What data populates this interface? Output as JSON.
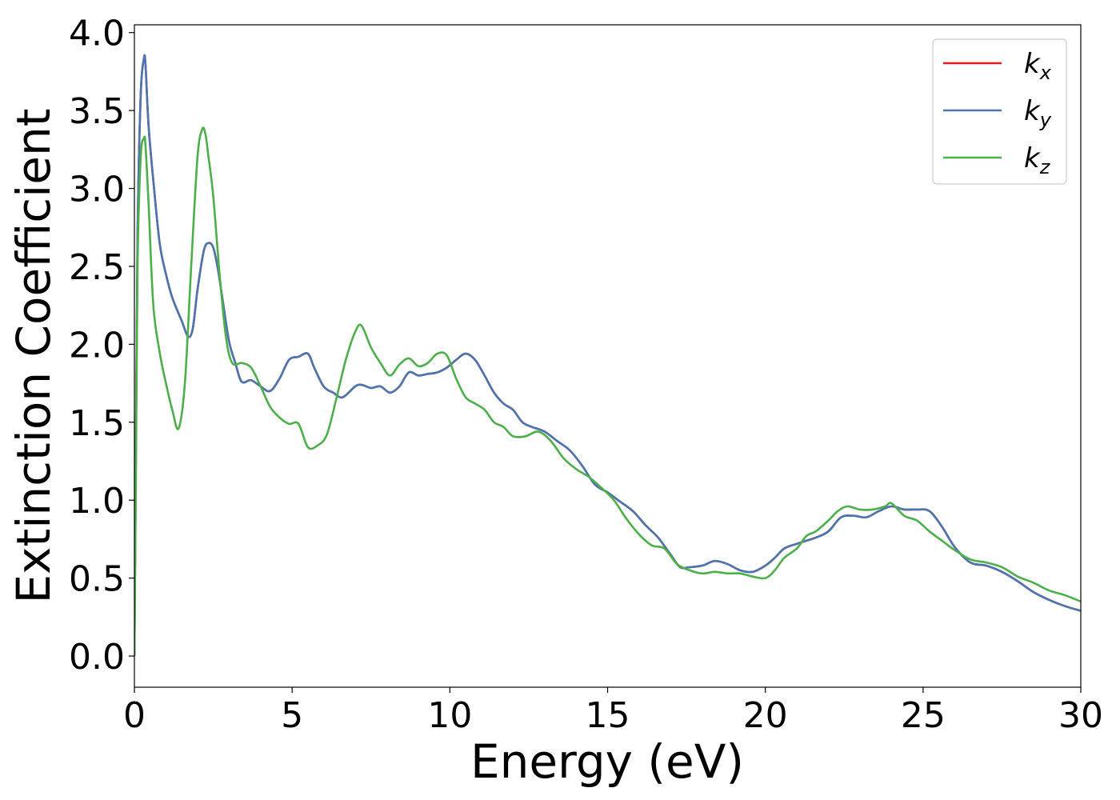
{
  "chart_data": {
    "type": "line",
    "title": "",
    "xlabel": "Energy (eV)",
    "ylabel": "Extinction Coefficient",
    "xlim": [
      0,
      30
    ],
    "ylim": [
      -0.2,
      4.05
    ],
    "xticks": [
      0,
      5,
      10,
      15,
      20,
      25,
      30
    ],
    "yticks": [
      0.0,
      0.5,
      1.0,
      1.5,
      2.0,
      2.5,
      3.0,
      3.5,
      4.0
    ],
    "xtick_labels": [
      "0",
      "5",
      "10",
      "15",
      "20",
      "25",
      "30"
    ],
    "ytick_labels": [
      "0.0",
      "0.5",
      "1.0",
      "1.5",
      "2.0",
      "2.5",
      "3.0",
      "3.5",
      "4.0"
    ],
    "grid": false,
    "legend_position": "top-right",
    "series": [
      {
        "name": "k_x",
        "label_base": "k",
        "label_sub": "x",
        "color": "#e41a1c",
        "x": [
          0,
          0.05,
          0.1,
          0.2,
          0.3,
          0.35,
          0.45,
          0.6,
          0.8,
          1.0,
          1.2,
          1.5,
          1.7,
          1.85,
          2.0,
          2.2,
          2.35,
          2.5,
          2.65,
          2.8,
          3.0,
          3.2,
          3.4,
          3.7,
          4.0,
          4.3,
          4.6,
          4.9,
          5.2,
          5.5,
          5.7,
          6.0,
          6.3,
          6.6,
          7.0,
          7.2,
          7.5,
          7.8,
          8.1,
          8.4,
          8.7,
          9.0,
          9.3,
          9.6,
          9.9,
          10.2,
          10.5,
          10.8,
          11.1,
          11.4,
          11.7,
          12.0,
          12.3,
          12.6,
          13.0,
          13.4,
          13.8,
          14.2,
          14.6,
          15.0,
          15.4,
          15.8,
          16.2,
          16.6,
          17.0,
          17.3,
          17.6,
          18.0,
          18.4,
          18.8,
          19.2,
          19.6,
          20.0,
          20.3,
          20.6,
          21.0,
          21.3,
          21.6,
          22.0,
          22.4,
          22.8,
          23.2,
          23.6,
          24.0,
          24.4,
          24.8,
          25.2,
          25.6,
          26.0,
          26.5,
          27.0,
          27.5,
          28.0,
          28.5,
          29.0,
          29.5,
          30.0
        ],
        "y": [
          0.0,
          1.4,
          2.7,
          3.6,
          3.83,
          3.8,
          3.4,
          3.05,
          2.65,
          2.45,
          2.3,
          2.15,
          2.05,
          2.1,
          2.35,
          2.6,
          2.65,
          2.62,
          2.48,
          2.28,
          2.02,
          1.88,
          1.76,
          1.77,
          1.73,
          1.7,
          1.78,
          1.9,
          1.92,
          1.94,
          1.85,
          1.73,
          1.69,
          1.66,
          1.73,
          1.74,
          1.72,
          1.73,
          1.69,
          1.73,
          1.82,
          1.8,
          1.81,
          1.82,
          1.85,
          1.9,
          1.94,
          1.9,
          1.8,
          1.69,
          1.62,
          1.58,
          1.5,
          1.47,
          1.44,
          1.38,
          1.32,
          1.22,
          1.1,
          1.05,
          0.99,
          0.93,
          0.84,
          0.76,
          0.65,
          0.57,
          0.57,
          0.58,
          0.61,
          0.59,
          0.55,
          0.54,
          0.58,
          0.63,
          0.69,
          0.72,
          0.74,
          0.76,
          0.8,
          0.89,
          0.9,
          0.89,
          0.93,
          0.96,
          0.94,
          0.94,
          0.93,
          0.83,
          0.7,
          0.6,
          0.58,
          0.54,
          0.48,
          0.41,
          0.36,
          0.32,
          0.29
        ]
      },
      {
        "name": "k_y",
        "label_base": "k",
        "label_sub": "y",
        "color": "#4a76b0",
        "x": [
          0,
          0.05,
          0.1,
          0.2,
          0.3,
          0.35,
          0.45,
          0.6,
          0.8,
          1.0,
          1.2,
          1.5,
          1.7,
          1.85,
          2.0,
          2.2,
          2.35,
          2.5,
          2.65,
          2.8,
          3.0,
          3.2,
          3.4,
          3.7,
          4.0,
          4.3,
          4.6,
          4.9,
          5.2,
          5.5,
          5.7,
          6.0,
          6.3,
          6.6,
          7.0,
          7.2,
          7.5,
          7.8,
          8.1,
          8.4,
          8.7,
          9.0,
          9.3,
          9.6,
          9.9,
          10.2,
          10.5,
          10.8,
          11.1,
          11.4,
          11.7,
          12.0,
          12.3,
          12.6,
          13.0,
          13.4,
          13.8,
          14.2,
          14.6,
          15.0,
          15.4,
          15.8,
          16.2,
          16.6,
          17.0,
          17.3,
          17.6,
          18.0,
          18.4,
          18.8,
          19.2,
          19.6,
          20.0,
          20.3,
          20.6,
          21.0,
          21.3,
          21.6,
          22.0,
          22.4,
          22.8,
          23.2,
          23.6,
          24.0,
          24.4,
          24.8,
          25.2,
          25.6,
          26.0,
          26.5,
          27.0,
          27.5,
          28.0,
          28.5,
          29.0,
          29.5,
          30.0
        ],
        "y": [
          0.0,
          1.4,
          2.7,
          3.6,
          3.83,
          3.8,
          3.4,
          3.05,
          2.65,
          2.45,
          2.3,
          2.15,
          2.05,
          2.1,
          2.35,
          2.6,
          2.65,
          2.62,
          2.48,
          2.28,
          2.02,
          1.88,
          1.76,
          1.77,
          1.73,
          1.7,
          1.78,
          1.9,
          1.92,
          1.94,
          1.85,
          1.73,
          1.69,
          1.66,
          1.73,
          1.74,
          1.72,
          1.73,
          1.69,
          1.73,
          1.82,
          1.8,
          1.81,
          1.82,
          1.85,
          1.9,
          1.94,
          1.9,
          1.8,
          1.69,
          1.62,
          1.58,
          1.5,
          1.47,
          1.44,
          1.38,
          1.32,
          1.22,
          1.1,
          1.05,
          0.99,
          0.93,
          0.84,
          0.76,
          0.65,
          0.57,
          0.57,
          0.58,
          0.61,
          0.59,
          0.55,
          0.54,
          0.58,
          0.63,
          0.69,
          0.72,
          0.74,
          0.76,
          0.8,
          0.89,
          0.9,
          0.89,
          0.93,
          0.96,
          0.94,
          0.94,
          0.93,
          0.83,
          0.7,
          0.6,
          0.58,
          0.54,
          0.48,
          0.41,
          0.36,
          0.32,
          0.29
        ]
      },
      {
        "name": "k_z",
        "label_base": "k",
        "label_sub": "z",
        "color": "#4daf4a",
        "x": [
          0,
          0.05,
          0.1,
          0.2,
          0.3,
          0.35,
          0.45,
          0.6,
          0.8,
          1.0,
          1.2,
          1.4,
          1.6,
          1.8,
          2.0,
          2.15,
          2.25,
          2.35,
          2.5,
          2.7,
          2.9,
          3.1,
          3.4,
          3.7,
          4.0,
          4.3,
          4.6,
          4.9,
          5.2,
          5.5,
          5.8,
          6.1,
          6.4,
          6.7,
          7.0,
          7.2,
          7.5,
          7.8,
          8.1,
          8.4,
          8.7,
          9.0,
          9.3,
          9.6,
          9.9,
          10.2,
          10.5,
          10.8,
          11.1,
          11.4,
          11.7,
          12.0,
          12.4,
          12.8,
          13.2,
          13.6,
          14.0,
          14.4,
          14.8,
          15.2,
          15.6,
          16.0,
          16.4,
          16.8,
          17.2,
          17.6,
          18.0,
          18.4,
          18.8,
          19.2,
          19.6,
          20.0,
          20.3,
          20.6,
          21.0,
          21.3,
          21.6,
          22.0,
          22.3,
          22.6,
          23.0,
          23.4,
          23.8,
          24.0,
          24.4,
          24.8,
          25.2,
          25.6,
          26.0,
          26.5,
          27.0,
          27.5,
          28.0,
          28.5,
          29.0,
          29.5,
          30.0
        ],
        "y": [
          0.0,
          1.2,
          2.5,
          3.2,
          3.32,
          3.28,
          2.9,
          2.25,
          1.95,
          1.75,
          1.58,
          1.46,
          1.75,
          2.5,
          3.2,
          3.38,
          3.35,
          3.2,
          2.95,
          2.45,
          2.05,
          1.88,
          1.88,
          1.85,
          1.73,
          1.6,
          1.53,
          1.49,
          1.49,
          1.34,
          1.35,
          1.42,
          1.65,
          1.9,
          2.08,
          2.12,
          1.98,
          1.88,
          1.8,
          1.87,
          1.91,
          1.86,
          1.88,
          1.94,
          1.93,
          1.78,
          1.66,
          1.62,
          1.58,
          1.5,
          1.47,
          1.41,
          1.41,
          1.44,
          1.38,
          1.27,
          1.2,
          1.15,
          1.08,
          1.0,
          0.88,
          0.78,
          0.71,
          0.69,
          0.59,
          0.55,
          0.53,
          0.54,
          0.53,
          0.53,
          0.51,
          0.5,
          0.55,
          0.63,
          0.69,
          0.77,
          0.8,
          0.87,
          0.93,
          0.96,
          0.94,
          0.94,
          0.96,
          0.98,
          0.9,
          0.87,
          0.8,
          0.74,
          0.68,
          0.62,
          0.6,
          0.57,
          0.51,
          0.47,
          0.42,
          0.39,
          0.35
        ]
      }
    ]
  }
}
